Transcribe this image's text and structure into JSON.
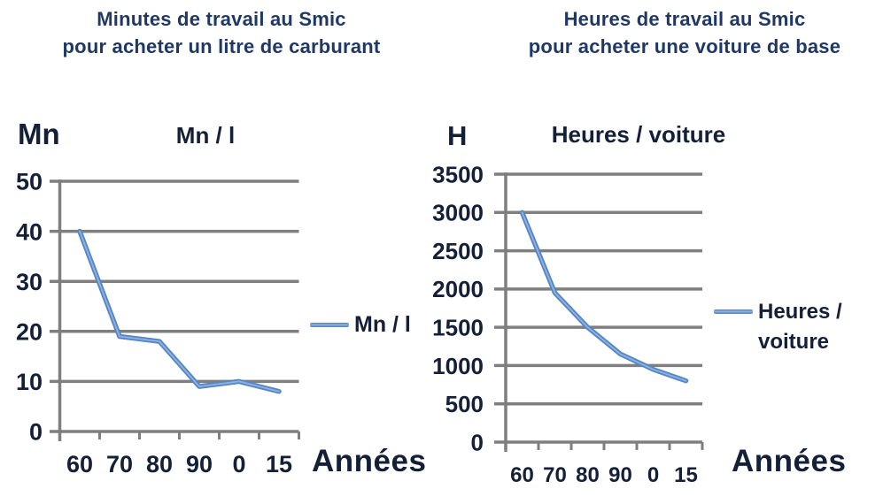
{
  "page": {
    "background": "#ffffff"
  },
  "colors": {
    "title_text": "#1f3864",
    "chart_text": "#141f38",
    "gridline": "#7f7f7f",
    "axis": "#7f7f7f",
    "series_line": "#5586c5",
    "series_line_highlight": "#8fb2e0"
  },
  "chart_data": [
    {
      "type": "line",
      "title": "Minutes de travail au Smic\npour acheter un litre de carburant",
      "axis_unit_label": "Mn",
      "plot_title": "Mn / l",
      "xlabel": "Années",
      "categories": [
        "60",
        "70",
        "80",
        "90",
        "0",
        "15"
      ],
      "series": [
        {
          "name": "Mn / l",
          "values": [
            40,
            19,
            18,
            9,
            10,
            8
          ]
        }
      ],
      "ylim": [
        0,
        50
      ],
      "yticks": [
        50,
        40,
        30,
        20,
        10,
        0
      ],
      "grid": true,
      "legend": {
        "label": "Mn / l",
        "position": "right"
      }
    },
    {
      "type": "line",
      "title": "Heures de travail au Smic\npour acheter une voiture de base",
      "axis_unit_label": "H",
      "plot_title": "Heures / voiture",
      "xlabel": "Années",
      "categories": [
        "60",
        "70",
        "80",
        "90",
        "0",
        "15"
      ],
      "series": [
        {
          "name": "Heures / voiture",
          "values": [
            3000,
            1950,
            1500,
            1150,
            950,
            800
          ]
        }
      ],
      "ylim": [
        0,
        3500
      ],
      "yticks": [
        3500,
        3000,
        2500,
        2000,
        1500,
        1000,
        500,
        0
      ],
      "grid": true,
      "legend": {
        "label": "Heures /\nvoiture",
        "position": "right"
      }
    }
  ]
}
